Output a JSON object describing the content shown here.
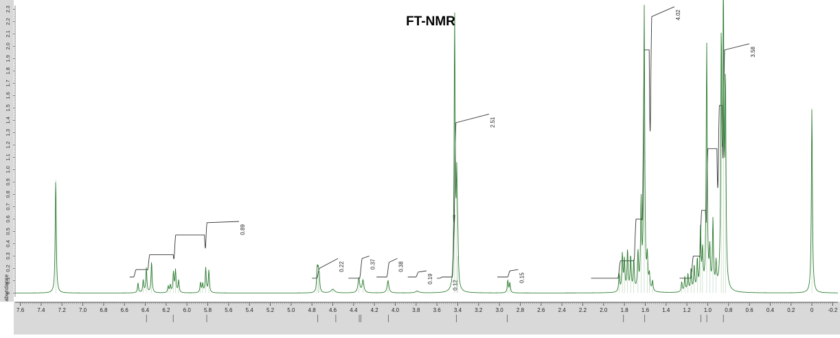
{
  "chart_data": {
    "type": "line",
    "title": "FT-NMR",
    "ylabel": "abundance",
    "xlim": [
      7.65,
      -0.25
    ],
    "ylim": [
      -0.02,
      2.33
    ],
    "x_ticks": [
      "7.6",
      "7.4",
      "7.2",
      "7.0",
      "6.8",
      "6.6",
      "6.4",
      "6.2",
      "6.0",
      "5.8",
      "5.6",
      "5.4",
      "5.2",
      "5.0",
      "4.8",
      "4.6",
      "4.4",
      "4.2",
      "4.0",
      "3.8",
      "3.6",
      "3.4",
      "3.2",
      "3.0",
      "2.8",
      "2.6",
      "2.4",
      "2.2",
      "2.0",
      "1.8",
      "1.6",
      "1.4",
      "1.2",
      "1.0",
      "0.8",
      "0.6",
      "0.4",
      "0.2",
      "0",
      "-0.2"
    ],
    "y_ticks": [
      "0",
      "0.1",
      "0.2",
      "0.3",
      "0.4",
      "0.5",
      "0.6",
      "0.7",
      "0.8",
      "0.9",
      "1.0",
      "1.1",
      "1.2",
      "1.3",
      "1.4",
      "1.5",
      "1.6",
      "1.7",
      "1.8",
      "1.9",
      "2.0",
      "2.1",
      "2.2",
      "2.3"
    ],
    "spectrum_color": "#2e7d32",
    "integral_color": "#333333",
    "peaks": [
      {
        "ppm": 7.26,
        "height": 0.92,
        "width": 0.006
      },
      {
        "ppm": 6.47,
        "height": 0.08,
        "width": 0.006
      },
      {
        "ppm": 6.42,
        "height": 0.1,
        "width": 0.006
      },
      {
        "ppm": 6.39,
        "height": 0.2,
        "width": 0.006
      },
      {
        "ppm": 6.34,
        "height": 0.25,
        "width": 0.006
      },
      {
        "ppm": 6.18,
        "height": 0.05,
        "width": 0.006
      },
      {
        "ppm": 6.16,
        "height": 0.06,
        "width": 0.006
      },
      {
        "ppm": 6.13,
        "height": 0.16,
        "width": 0.006
      },
      {
        "ppm": 6.11,
        "height": 0.18,
        "width": 0.006
      },
      {
        "ppm": 6.08,
        "height": 0.1,
        "width": 0.006
      },
      {
        "ppm": 5.87,
        "height": 0.08,
        "width": 0.006
      },
      {
        "ppm": 5.85,
        "height": 0.07,
        "width": 0.006
      },
      {
        "ppm": 5.82,
        "height": 0.2,
        "width": 0.006
      },
      {
        "ppm": 5.79,
        "height": 0.18,
        "width": 0.006
      },
      {
        "ppm": 4.75,
        "height": 0.18,
        "width": 0.006
      },
      {
        "ppm": 4.74,
        "height": 0.15,
        "width": 0.006
      },
      {
        "ppm": 4.73,
        "height": 0.12,
        "width": 0.006
      },
      {
        "ppm": 4.6,
        "height": 0.03,
        "width": 0.02
      },
      {
        "ppm": 4.35,
        "height": 0.12,
        "width": 0.01
      },
      {
        "ppm": 4.31,
        "height": 0.1,
        "width": 0.01
      },
      {
        "ppm": 4.07,
        "height": 0.1,
        "width": 0.01
      },
      {
        "ppm": 3.79,
        "height": 0.015,
        "width": 0.02
      },
      {
        "ppm": 3.43,
        "height": 2.2,
        "width": 0.006
      },
      {
        "ppm": 3.41,
        "height": 0.8,
        "width": 0.006
      },
      {
        "ppm": 3.4,
        "height": 0.3,
        "width": 0.006
      },
      {
        "ppm": 2.92,
        "height": 0.1,
        "width": 0.006
      },
      {
        "ppm": 2.9,
        "height": 0.08,
        "width": 0.006
      },
      {
        "ppm": 1.85,
        "height": 0.14,
        "width": 0.006
      },
      {
        "ppm": 1.82,
        "height": 0.3,
        "width": 0.006
      },
      {
        "ppm": 1.8,
        "height": 0.25,
        "width": 0.006
      },
      {
        "ppm": 1.77,
        "height": 0.33,
        "width": 0.006
      },
      {
        "ppm": 1.74,
        "height": 0.28,
        "width": 0.006
      },
      {
        "ppm": 1.71,
        "height": 0.25,
        "width": 0.006
      },
      {
        "ppm": 1.67,
        "height": 0.3,
        "width": 0.006
      },
      {
        "ppm": 1.64,
        "height": 0.7,
        "width": 0.006
      },
      {
        "ppm": 1.61,
        "height": 2.3,
        "width": 0.006
      },
      {
        "ppm": 1.58,
        "height": 0.25,
        "width": 0.006
      },
      {
        "ppm": 1.56,
        "height": 0.12,
        "width": 0.006
      },
      {
        "ppm": 1.53,
        "height": 0.08,
        "width": 0.006
      },
      {
        "ppm": 1.25,
        "height": 0.08,
        "width": 0.006
      },
      {
        "ppm": 1.22,
        "height": 0.12,
        "width": 0.006
      },
      {
        "ppm": 1.19,
        "height": 0.14,
        "width": 0.006
      },
      {
        "ppm": 1.16,
        "height": 0.18,
        "width": 0.006
      },
      {
        "ppm": 1.13,
        "height": 0.2,
        "width": 0.006
      },
      {
        "ppm": 1.1,
        "height": 0.25,
        "width": 0.006
      },
      {
        "ppm": 1.07,
        "height": 0.5,
        "width": 0.006
      },
      {
        "ppm": 1.05,
        "height": 0.3,
        "width": 0.006
      },
      {
        "ppm": 1.01,
        "height": 2.0,
        "width": 0.006
      },
      {
        "ppm": 0.98,
        "height": 0.3,
        "width": 0.006
      },
      {
        "ppm": 0.95,
        "height": 0.55,
        "width": 0.006
      },
      {
        "ppm": 0.92,
        "height": 0.2,
        "width": 0.006
      },
      {
        "ppm": 0.87,
        "height": 1.95,
        "width": 0.006
      },
      {
        "ppm": 0.85,
        "height": 2.25,
        "width": 0.006
      },
      {
        "ppm": 0.83,
        "height": 1.6,
        "width": 0.006
      },
      {
        "ppm": 0.0,
        "height": 1.5,
        "width": 0.006
      }
    ],
    "integrals": [
      {
        "label": "0.89",
        "start": 6.55,
        "end": 5.5,
        "base": 0.13,
        "rise": 0.45,
        "steps": [
          [
            6.5,
            0.06
          ],
          [
            6.37,
            0.18
          ],
          [
            6.12,
            0.34
          ],
          [
            5.82,
            0.44
          ]
        ]
      },
      {
        "label": "0.22",
        "start": 4.8,
        "end": 4.55,
        "base": 0.12,
        "rise": 0.16,
        "steps": [
          [
            4.74,
            0.08
          ]
        ]
      },
      {
        "label": "0.37",
        "start": 4.45,
        "end": 4.25,
        "base": 0.12,
        "rise": 0.18,
        "steps": [
          [
            4.33,
            0.16
          ]
        ]
      },
      {
        "label": "0.38",
        "start": 4.18,
        "end": 3.98,
        "base": 0.13,
        "rise": 0.15,
        "steps": [
          [
            4.07,
            0.12
          ]
        ]
      },
      {
        "label": "0.19",
        "start": 3.88,
        "end": 3.7,
        "base": 0.13,
        "rise": 0.05,
        "steps": [
          [
            3.79,
            0.04
          ]
        ]
      },
      {
        "label": "0.12",
        "start": 3.6,
        "end": 3.46,
        "base": 0.12,
        "rise": 0.01,
        "steps": [
          [
            3.56,
            0.01
          ]
        ]
      },
      {
        "label": "2.51",
        "start": 3.46,
        "end": 3.1,
        "base": 0.13,
        "rise": 1.32,
        "steps": [
          [
            3.44,
            0.5
          ],
          [
            3.43,
            1.25
          ]
        ]
      },
      {
        "label": "0.15",
        "start": 3.02,
        "end": 2.82,
        "base": 0.13,
        "rise": 0.06,
        "steps": [
          [
            2.91,
            0.05
          ]
        ]
      },
      {
        "label": "4.02",
        "start": 2.12,
        "end": 1.32,
        "base": 0.12,
        "rise": 2.2,
        "steps": [
          [
            1.85,
            0.14
          ],
          [
            1.7,
            0.48
          ],
          [
            1.62,
            1.85
          ],
          [
            1.55,
            2.12
          ]
        ]
      },
      {
        "label": "3.58",
        "start": 1.27,
        "end": 0.6,
        "base": 0.12,
        "rise": 1.9,
        "steps": [
          [
            1.15,
            0.18
          ],
          [
            1.07,
            0.55
          ],
          [
            1.01,
            1.05
          ],
          [
            0.9,
            1.4
          ],
          [
            0.85,
            1.85
          ]
        ]
      }
    ],
    "peak_labels": [
      {
        "ppm": 6.389,
        "label": "6.389"
      },
      {
        "ppm": 6.132,
        "label": "6.132"
      },
      {
        "ppm": 5.81,
        "label": "5.810"
      },
      {
        "ppm": 4.744,
        "label": "4.744"
      },
      {
        "ppm": 4.571,
        "label": "4.571"
      },
      {
        "ppm": 4.346,
        "label": "4.346"
      },
      {
        "ppm": 4.329,
        "label": "4.329"
      },
      {
        "ppm": 4.066,
        "label": "4.066"
      },
      {
        "ppm": 3.413,
        "label": "3.413"
      },
      {
        "ppm": 2.924,
        "label": "2.924"
      },
      {
        "ppm": 1.809,
        "label": "1.809"
      },
      {
        "ppm": 1.605,
        "label": "1.605"
      },
      {
        "ppm": 1.067,
        "label": "1.067"
      },
      {
        "ppm": 1.009,
        "label": "1.009"
      },
      {
        "ppm": 0.85,
        "label": "0.850"
      }
    ]
  }
}
